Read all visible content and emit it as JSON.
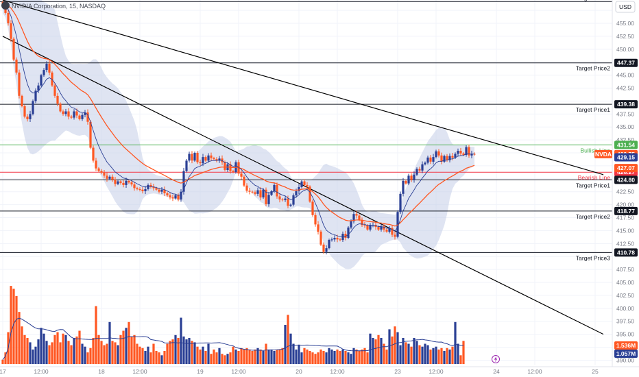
{
  "header": {
    "title": "NVIDIA Corporation, 15, NASDAQ"
  },
  "price_axis": {
    "currency": "USD",
    "ticks": [
      "457.50",
      "455.00",
      "452.50",
      "450.00",
      "447.50",
      "445.00",
      "442.50",
      "440.00",
      "437.50",
      "435.00",
      "432.50",
      "430.00",
      "427.50",
      "425.00",
      "422.50",
      "420.00",
      "417.50",
      "415.00",
      "412.50",
      "410.00",
      "407.50",
      "405.00",
      "402.50",
      "400.00",
      "397.50",
      "395.00",
      "392.50",
      "390.00"
    ]
  },
  "time_axis": {
    "ticks": [
      {
        "label": "17",
        "t": 0
      },
      {
        "label": "12:00",
        "t": 14
      },
      {
        "label": "18",
        "t": 36
      },
      {
        "label": "12:00",
        "t": 50
      },
      {
        "label": "19",
        "t": 72
      },
      {
        "label": "12:00",
        "t": 86
      },
      {
        "label": "20",
        "t": 108
      },
      {
        "label": "12:00",
        "t": 122
      },
      {
        "label": "23",
        "t": 144
      },
      {
        "label": "12:00",
        "t": 158
      },
      {
        "label": "24",
        "t": 180
      },
      {
        "label": "12:00",
        "t": 194
      },
      {
        "label": "25",
        "t": 216
      }
    ]
  },
  "levels": [
    {
      "name": "Target Price3",
      "value": 459.2,
      "color": "#131722",
      "badge": null,
      "label_side": "top"
    },
    {
      "name": "Target Price2",
      "value": 447.37,
      "color": "#131722",
      "badge": "447.37",
      "label_side": "below"
    },
    {
      "name": "Target Price1",
      "value": 439.38,
      "color": "#131722",
      "badge": "439.38",
      "label_side": "below"
    },
    {
      "name": "Bullish Line",
      "value": 431.54,
      "color": "#4caf50",
      "badge": "431.54",
      "label_side": "below"
    },
    {
      "name": "Bearish Line",
      "value": 426.27,
      "color": "#f23645",
      "badge": "426.27",
      "label_side": "below"
    },
    {
      "name": "Target Price1",
      "value": 424.8,
      "color": "#131722",
      "badge": "424.80",
      "label_side": "below"
    },
    {
      "name": "Target Price2",
      "value": 418.77,
      "color": "#131722",
      "badge": "418.77",
      "label_side": "below"
    },
    {
      "name": "Target Price3",
      "value": 410.78,
      "color": "#131722",
      "badge": "410.78",
      "label_side": "below"
    }
  ],
  "extra_badges": [
    {
      "label": "NVDA",
      "value": 429.75,
      "text": "429.75",
      "color": "#ff5722"
    },
    {
      "label": "",
      "value": 429.15,
      "text": "429.15",
      "color": "#2a3f94"
    },
    {
      "label": "",
      "value": 427.07,
      "text": "427.07",
      "color": "#ff5722"
    }
  ],
  "volume_badges": [
    {
      "text": "1.536M",
      "color": "#ff5722"
    },
    {
      "text": "1.057M",
      "color": "#2a3f94"
    }
  ],
  "colors": {
    "up": "#2a3f94",
    "down": "#ff5722",
    "band": "#c5cde8",
    "ema_fast": "#2a3f94",
    "ema_slow": "#ff5722",
    "trendline": "#000000",
    "grid": "#f0f3fa"
  },
  "chart_data": {
    "type": "candlestick",
    "title": "NVIDIA Corporation, 15, NASDAQ",
    "symbol": "NVDA",
    "ylim": [
      389.0,
      459.5
    ],
    "trendlines": [
      {
        "t1": 0,
        "p1": 459.5,
        "t2": 219,
        "p2": 425.8
      },
      {
        "t1": 0,
        "p1": 452.5,
        "t2": 219,
        "p2": 395.0
      }
    ],
    "close": [
      458.8,
      457.0,
      455.0,
      452.0,
      448.0,
      445.5,
      441.0,
      439.0,
      437.0,
      436.5,
      437.5,
      440.0,
      442.0,
      443.0,
      445.0,
      446.0,
      447.2,
      445.5,
      443.0,
      441.0,
      439.5,
      438.0,
      437.5,
      438.0,
      437.0,
      436.8,
      438.0,
      437.2,
      436.5,
      437.3,
      437.8,
      436.0,
      431.0,
      428.5,
      427.0,
      426.5,
      426.2,
      425.6,
      425.0,
      425.4,
      424.8,
      424.0,
      424.5,
      424.2,
      423.8,
      424.6,
      424.3,
      423.9,
      423.2,
      423.0,
      422.9,
      422.6,
      423.0,
      423.8,
      423.5,
      423.2,
      422.9,
      422.5,
      422.9,
      422.2,
      421.8,
      421.4,
      421.2,
      421.8,
      421.0,
      422.5,
      426.5,
      428.5,
      429.8,
      428.5,
      430.0,
      428.2,
      428.0,
      429.2,
      428.5,
      429.5,
      429.0,
      428.8,
      428.5,
      428.9,
      428.2,
      426.7,
      427.8,
      426.5,
      426.3,
      428.2,
      426.0,
      425.4,
      423.7,
      422.7,
      422.5,
      422.4,
      422.1,
      422.8,
      421.4,
      422.9,
      420.1,
      421.9,
      422.6,
      423.8,
      421.6,
      421.0,
      420.9,
      421.2,
      419.8,
      420.0,
      421.8,
      422.6,
      423.4,
      424.5,
      423.8,
      423.5,
      420.6,
      418.0,
      416.2,
      414.8,
      412.3,
      410.9,
      411.6,
      413.2,
      413.3,
      413.6,
      413.3,
      413.2,
      414.4,
      413.6,
      415.6,
      416.8,
      418.2,
      417.9,
      417.1,
      416.1,
      416.0,
      415.2,
      416.1,
      416.1,
      415.7,
      415.2,
      415.8,
      415.2,
      414.8,
      415.5,
      414.2,
      413.8,
      418.6,
      422.1,
      424.6,
      424.1,
      425.6,
      424.8,
      425.8,
      426.9,
      426.6,
      427.8,
      428.1,
      429.1,
      428.3,
      429.2,
      430.3,
      429.5,
      428.3,
      429.4,
      428.6,
      429.4,
      429.1,
      429.8,
      430.4,
      429.9,
      429.6,
      431.1,
      429.5,
      429.8,
      429.75
    ],
    "volume_millions": [
      0.15,
      0.4,
      1.1,
      2.7,
      2.6,
      2.35,
      1.8,
      1.3,
      1.0,
      0.9,
      0.75,
      0.5,
      0.6,
      0.85,
      1.25,
      1.05,
      0.8,
      0.65,
      0.75,
      1.0,
      1.1,
      0.75,
      1.05,
      1.0,
      0.8,
      0.65,
      0.9,
      0.95,
      1.15,
      0.7,
      0.6,
      0.4,
      0.55,
      0.9,
      2.0,
      1.0,
      0.8,
      0.65,
      0.7,
      1.45,
      0.8,
      0.75,
      0.65,
      1.0,
      1.15,
      1.25,
      1.45,
      0.95,
      1.0,
      0.7,
      0.6,
      0.55,
      0.45,
      0.6,
      0.4,
      0.7,
      0.45,
      0.4,
      0.3,
      0.45,
      0.7,
      0.8,
      0.85,
      1.0,
      0.9,
      1.6,
      0.95,
      0.85,
      0.9,
      0.8,
      0.75,
      0.6,
      0.5,
      0.6,
      0.45,
      0.7,
      0.35,
      0.5,
      0.4,
      0.55,
      0.35,
      0.3,
      0.35,
      0.4,
      0.6,
      0.5,
      0.45,
      0.55,
      0.5,
      0.55,
      0.5,
      0.45,
      0.5,
      0.55,
      0.5,
      0.45,
      0.7,
      0.5,
      0.5,
      0.45,
      0.5,
      0.5,
      0.55,
      1.35,
      1.7,
      1.05,
      0.7,
      0.5,
      0.65,
      0.4,
      0.55,
      0.5,
      0.45,
      0.4,
      0.35,
      0.4,
      0.5,
      0.45,
      0.4,
      0.55,
      0.5,
      0.45,
      0.5,
      0.45,
      0.5,
      0.45,
      0.4,
      0.35,
      0.55,
      0.5,
      0.45,
      0.5,
      0.55,
      0.4,
      1.05,
      0.9,
      0.85,
      1.0,
      0.9,
      0.7,
      0.5,
      1.2,
      0.95,
      1.3,
      1.1,
      0.65,
      0.9,
      0.75,
      0.7,
      0.6,
      0.9,
      0.8,
      0.65,
      0.6,
      0.7,
      0.65,
      0.5,
      0.55,
      0.6,
      0.5,
      0.55,
      0.45,
      0.55,
      0.5,
      0.6,
      1.45,
      0.7,
      0.3,
      0.8
    ],
    "volume_ylim": [
      0,
      3.2
    ]
  }
}
